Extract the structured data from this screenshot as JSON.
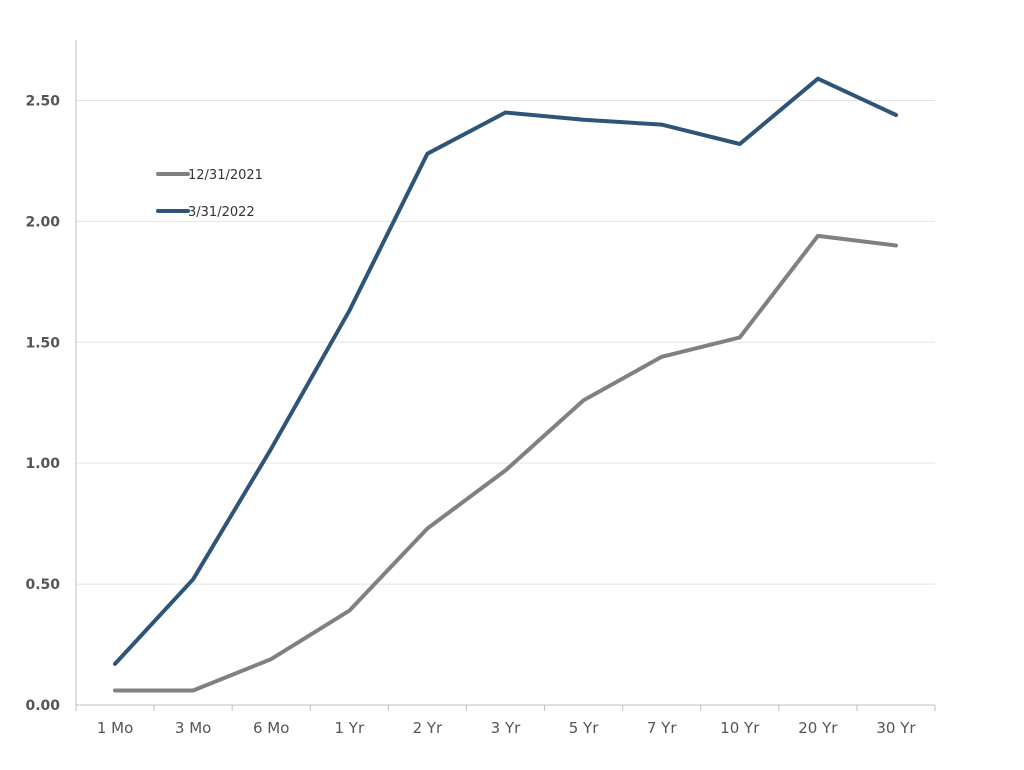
{
  "chart_data": {
    "type": "line",
    "title": "",
    "xlabel": "",
    "ylabel": "",
    "categories": [
      "1 Mo",
      "3 Mo",
      "6 Mo",
      "1 Yr",
      "2 Yr",
      "3 Yr",
      "5 Yr",
      "7 Yr",
      "10 Yr",
      "20 Yr",
      "30 Yr"
    ],
    "ylim": [
      0,
      2.75
    ],
    "yticks": [
      "0.00",
      "0.50",
      "1.00",
      "1.50",
      "2.00",
      "2.50"
    ],
    "grid": true,
    "legend_position": "top-left",
    "series": [
      {
        "name": "12/31/2021",
        "color": "#808080",
        "values": [
          0.06,
          0.06,
          0.19,
          0.39,
          0.73,
          0.97,
          1.26,
          1.44,
          1.52,
          1.94,
          1.9
        ]
      },
      {
        "name": "3/31/2022",
        "color": "#2e5578",
        "values": [
          0.17,
          0.52,
          1.06,
          1.63,
          2.28,
          2.45,
          2.42,
          2.4,
          2.32,
          2.59,
          2.44
        ]
      }
    ]
  }
}
